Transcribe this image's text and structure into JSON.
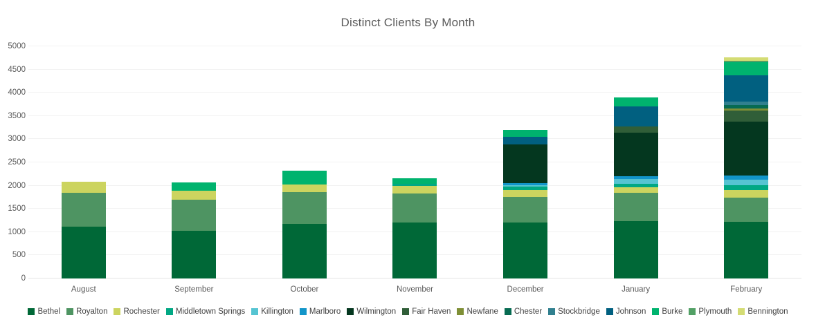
{
  "title": "Distinct Clients By Month",
  "chart_data": {
    "type": "bar",
    "stacked": true,
    "title": "Distinct Clients By Month",
    "xlabel": "",
    "ylabel": "",
    "ylim": [
      0,
      5000
    ],
    "ytick_step": 500,
    "grid": true,
    "legend_position": "bottom",
    "categories": [
      "August",
      "September",
      "October",
      "November",
      "December",
      "January",
      "February"
    ],
    "series": [
      {
        "name": "Bethel",
        "color": "#006837",
        "values": [
          1120,
          1025,
          1175,
          1200,
          1200,
          1240,
          1225
        ]
      },
      {
        "name": "Royalton",
        "color": "#4e9462",
        "values": [
          720,
          670,
          685,
          630,
          560,
          610,
          520
        ]
      },
      {
        "name": "Rochester",
        "color": "#ccd45f",
        "values": [
          240,
          190,
          165,
          165,
          140,
          120,
          165
        ]
      },
      {
        "name": "Middletown Springs",
        "color": "#01a884",
        "values": [
          0,
          0,
          0,
          50,
          80,
          65,
          100
        ]
      },
      {
        "name": "Killington",
        "color": "#56c4d2",
        "values": [
          0,
          0,
          0,
          0,
          25,
          110,
          125
        ]
      },
      {
        "name": "Marlboro",
        "color": "#1295c9",
        "values": [
          0,
          0,
          0,
          0,
          55,
          60,
          85
        ]
      },
      {
        "name": "Wilmington",
        "color": "#04371f",
        "values": [
          0,
          0,
          0,
          0,
          830,
          930,
          1160
        ]
      },
      {
        "name": "Fair Haven",
        "color": "#305e38",
        "values": [
          0,
          0,
          0,
          0,
          0,
          135,
          230
        ]
      },
      {
        "name": "Newfane",
        "color": "#7f8f36",
        "values": [
          0,
          0,
          0,
          0,
          0,
          0,
          55
        ]
      },
      {
        "name": "Chester",
        "color": "#076b52",
        "values": [
          0,
          0,
          0,
          0,
          0,
          0,
          75
        ]
      },
      {
        "name": "Stockbridge",
        "color": "#31808f",
        "values": [
          0,
          0,
          0,
          0,
          0,
          0,
          75
        ]
      },
      {
        "name": "Johnson",
        "color": "#016080",
        "values": [
          0,
          0,
          0,
          0,
          160,
          430,
          560
        ]
      },
      {
        "name": "Burke",
        "color": "#00b36e",
        "values": [
          0,
          185,
          290,
          110,
          150,
          200,
          290
        ]
      },
      {
        "name": "Plymouth",
        "color": "#52a065",
        "values": [
          0,
          0,
          0,
          0,
          0,
          0,
          30
        ]
      },
      {
        "name": "Bennington",
        "color": "#d4dc74",
        "values": [
          0,
          0,
          0,
          0,
          0,
          0,
          60
        ]
      }
    ]
  }
}
